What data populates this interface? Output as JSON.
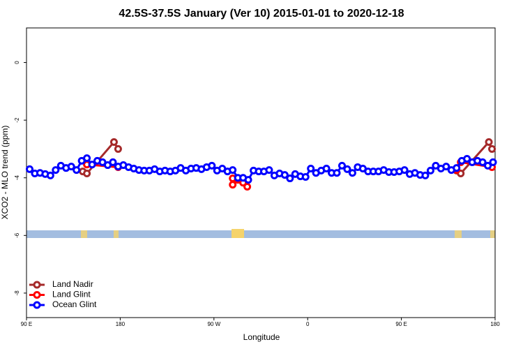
{
  "chart_data": {
    "type": "line",
    "title": "42.5S-37.5S January (Ver 10)   2015-01-01 to 2020-12-18",
    "xlabel": "Longitude",
    "ylabel": "XCO2 - MLO trend (ppm)",
    "xlim": [
      90,
      540
    ],
    "xticks": [
      {
        "value": 90,
        "label": "90 E"
      },
      {
        "value": 180,
        "label": "180"
      },
      {
        "value": 270,
        "label": "90 W"
      },
      {
        "value": 360,
        "label": "0"
      },
      {
        "value": 450,
        "label": "90 E"
      },
      {
        "value": 540,
        "label": "180"
      }
    ],
    "ylim": [
      -8.85,
      1.2
    ],
    "yticks": [
      0,
      -2,
      -4,
      -6,
      -8
    ],
    "legend": "bottomleft",
    "series": [
      {
        "name": "Land Nadir",
        "color": "#a52a2a",
        "x": [
          144,
          148,
          174,
          178,
          503,
          507,
          534,
          537
        ],
        "values": [
          -3.78,
          -3.85,
          -2.76,
          -3.0,
          -3.75,
          -3.85,
          -2.76,
          -3.0
        ]
      },
      {
        "name": "Land Glint",
        "color": "#ff0000",
        "x": [
          148,
          178,
          288,
          288,
          293,
          298,
          302,
          503,
          507,
          537
        ],
        "values": [
          -3.54,
          -3.63,
          -4.02,
          -4.24,
          -4.07,
          -4.17,
          -4.31,
          -3.73,
          -3.46,
          -3.63
        ]
      },
      {
        "name": "Ocean Glint",
        "color": "#0000ff",
        "x": [
          93,
          98,
          103,
          108,
          113,
          118,
          123,
          128,
          133,
          138,
          143,
          148,
          153,
          158,
          163,
          168,
          173,
          178,
          183,
          188,
          193,
          198,
          203,
          208,
          213,
          218,
          223,
          228,
          233,
          238,
          243,
          248,
          253,
          258,
          263,
          268,
          273,
          278,
          283,
          288,
          293,
          298,
          303,
          308,
          313,
          318,
          323,
          328,
          333,
          338,
          343,
          348,
          353,
          358,
          363,
          368,
          373,
          378,
          383,
          388,
          393,
          398,
          403,
          408,
          413,
          418,
          423,
          428,
          433,
          438,
          443,
          448,
          453,
          458,
          463,
          468,
          473,
          478,
          483,
          488,
          493,
          498,
          503,
          508,
          513,
          518,
          523,
          528,
          533,
          538
        ],
        "values": [
          -3.7,
          -3.85,
          -3.83,
          -3.87,
          -3.92,
          -3.73,
          -3.58,
          -3.66,
          -3.61,
          -3.73,
          -3.41,
          -3.32,
          -3.54,
          -3.41,
          -3.46,
          -3.56,
          -3.46,
          -3.61,
          -3.56,
          -3.63,
          -3.68,
          -3.73,
          -3.75,
          -3.75,
          -3.7,
          -3.78,
          -3.75,
          -3.78,
          -3.75,
          -3.66,
          -3.75,
          -3.68,
          -3.66,
          -3.7,
          -3.63,
          -3.58,
          -3.75,
          -3.68,
          -3.78,
          -3.73,
          -4.0,
          -4.0,
          -4.07,
          -3.75,
          -3.78,
          -3.78,
          -3.73,
          -3.92,
          -3.85,
          -3.9,
          -4.02,
          -3.87,
          -3.95,
          -3.97,
          -3.68,
          -3.83,
          -3.75,
          -3.68,
          -3.83,
          -3.83,
          -3.58,
          -3.7,
          -3.83,
          -3.63,
          -3.68,
          -3.78,
          -3.78,
          -3.78,
          -3.73,
          -3.8,
          -3.8,
          -3.78,
          -3.73,
          -3.87,
          -3.83,
          -3.9,
          -3.92,
          -3.75,
          -3.58,
          -3.68,
          -3.61,
          -3.73,
          -3.66,
          -3.41,
          -3.34,
          -3.46,
          -3.41,
          -3.46,
          -3.58,
          -3.46
        ]
      }
    ]
  }
}
